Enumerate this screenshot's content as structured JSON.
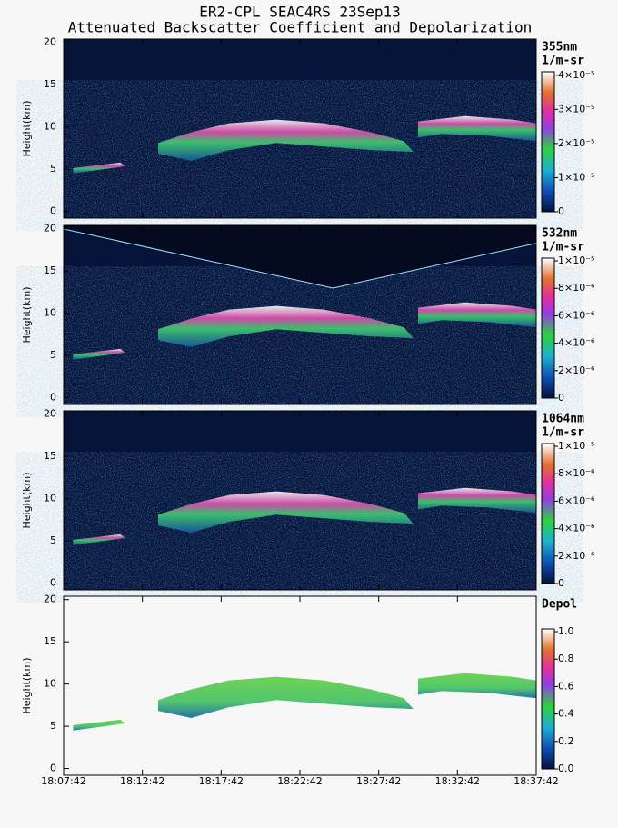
{
  "chart_data": [
    {
      "type": "heatmap",
      "title": "ER2-CPL SEAC4RS 23Sep13",
      "subtitle": "Attenuated Backscatter Coefficient and Depolarization",
      "ylabel": "Height(km)",
      "ylim": [
        -0.8,
        20.4
      ],
      "yticks": [
        0,
        5,
        10,
        15,
        20
      ],
      "colorbar": {
        "label": "355nm",
        "units": "1/m-sr",
        "clim": [
          0,
          4.1e-05
        ],
        "ticks": [
          0,
          {
            "value": 1e-05,
            "label": "1×10⁻⁵"
          },
          {
            "value": 2e-05,
            "label": "2×10⁻⁵"
          },
          {
            "value": 3e-05,
            "label": "3×10⁻⁵"
          },
          {
            "value": 4e-05,
            "label": "4×10⁻⁵"
          }
        ]
      }
    },
    {
      "type": "heatmap",
      "ylabel": "Height(km)",
      "ylim": [
        -0.8,
        20.4
      ],
      "yticks": [
        0,
        5,
        10,
        15,
        20
      ],
      "colorbar": {
        "label": "532nm",
        "units": "1/m-sr",
        "clim": [
          0,
          1.02e-05
        ],
        "ticks": [
          0,
          {
            "value": 2e-06,
            "label": "2×10⁻⁶"
          },
          {
            "value": 4e-06,
            "label": "4×10⁻⁶"
          },
          {
            "value": 6e-06,
            "label": "6×10⁻⁶"
          },
          {
            "value": 8e-06,
            "label": "8×10⁻⁶"
          },
          {
            "value": 1e-05,
            "label": "1×10⁻⁵"
          }
        ]
      }
    },
    {
      "type": "heatmap",
      "ylabel": "Height(km)",
      "ylim": [
        -0.8,
        20.4
      ],
      "yticks": [
        0,
        5,
        10,
        15,
        20
      ],
      "colorbar": {
        "label": "1064nm",
        "units": "1/m-sr",
        "clim": [
          0,
          1.02e-05
        ],
        "ticks": [
          0,
          {
            "value": 2e-06,
            "label": "2×10⁻⁶"
          },
          {
            "value": 4e-06,
            "label": "4×10⁻⁶"
          },
          {
            "value": 6e-06,
            "label": "6×10⁻⁶"
          },
          {
            "value": 8e-06,
            "label": "8×10⁻⁶"
          },
          {
            "value": 1e-05,
            "label": "1×10⁻⁵"
          }
        ]
      }
    },
    {
      "type": "depol",
      "ylabel": "Height(km)",
      "ylim": [
        -0.8,
        20.4
      ],
      "yticks": [
        0,
        5,
        10,
        15,
        20
      ],
      "xlim": [
        "18:07:42",
        "18:37:42"
      ],
      "xticks": [
        "18:07:42",
        "18:12:42",
        "18:17:42",
        "18:22:42",
        "18:27:42",
        "18:32:42",
        "18:37:42"
      ],
      "colorbar": {
        "label": "Depol",
        "clim": [
          0,
          1.02
        ],
        "ticks": [
          {
            "value": 0,
            "label": "0.0"
          },
          {
            "value": 0.2,
            "label": "0.2"
          },
          {
            "value": 0.4,
            "label": "0.4"
          },
          {
            "value": 0.6,
            "label": "0.6"
          },
          {
            "value": 0.8,
            "label": "0.8"
          },
          {
            "value": 1,
            "label": "1.0"
          }
        ]
      }
    }
  ]
}
